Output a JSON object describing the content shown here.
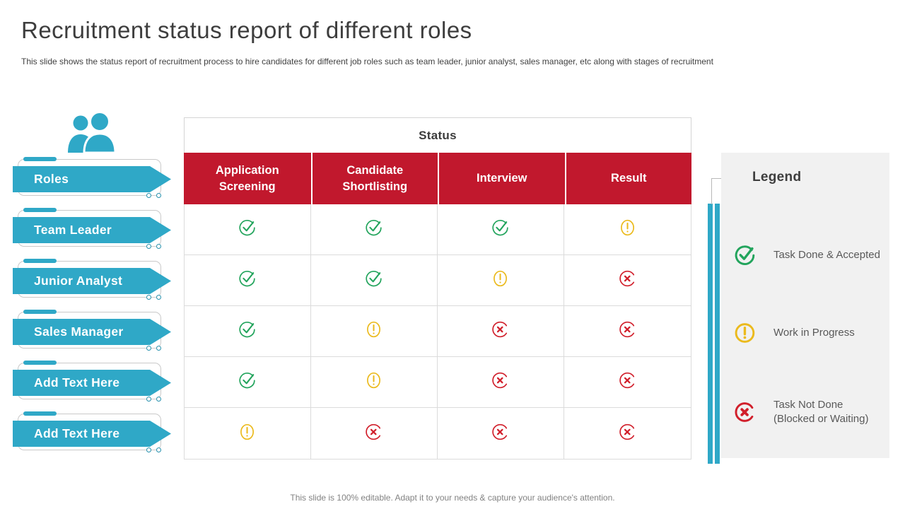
{
  "slide": {
    "title": "Recruitment status report of different roles",
    "subtitle": "This slide shows the status report of recruitment process to hire candidates for different job roles such as team leader, junior analyst, sales manager, etc along with stages of recruitment",
    "footer": "This slide is 100% editable. Adapt it to your needs & capture your audience's attention."
  },
  "colors": {
    "teal": "#2FA8C7",
    "header_red": "#C1182D",
    "icon_green": "#22A45C",
    "icon_yellow": "#EBBA1D",
    "icon_red": "#D11F2B",
    "legend_bg": "#F1F1F1"
  },
  "roles_column": {
    "header_icon": "people-icon",
    "items": [
      {
        "label": "Roles",
        "placeholder": false
      },
      {
        "label": "Team Leader",
        "placeholder": false
      },
      {
        "label": "Junior Analyst",
        "placeholder": false
      },
      {
        "label": "Sales Manager",
        "placeholder": false
      },
      {
        "label": "Add Text Here",
        "placeholder": true
      },
      {
        "label": "Add Text Here",
        "placeholder": true
      }
    ]
  },
  "table": {
    "group_header": "Status",
    "columns": [
      "Application Screening",
      "Candidate Shortlisting",
      "Interview",
      "Result"
    ],
    "status_icons": {
      "done": "check-circle-icon",
      "progress": "exclamation-circle-icon",
      "notdone": "cross-circle-icon"
    },
    "rows": [
      {
        "role": "Team Leader",
        "statuses": [
          "done",
          "done",
          "done",
          "progress"
        ]
      },
      {
        "role": "Junior Analyst",
        "statuses": [
          "done",
          "done",
          "progress",
          "notdone"
        ]
      },
      {
        "role": "Sales Manager",
        "statuses": [
          "done",
          "progress",
          "notdone",
          "notdone"
        ]
      },
      {
        "role": "Add Text Here",
        "statuses": [
          "done",
          "progress",
          "notdone",
          "notdone"
        ]
      },
      {
        "role": "Add Text Here",
        "statuses": [
          "progress",
          "notdone",
          "notdone",
          "notdone"
        ]
      }
    ]
  },
  "legend": {
    "title": "Legend",
    "items": [
      {
        "icon": "done",
        "icon_name": "check-circle-icon",
        "label": "Task Done & Accepted"
      },
      {
        "icon": "progress",
        "icon_name": "exclamation-circle-icon",
        "label": "Work in Progress"
      },
      {
        "icon": "notdone",
        "icon_name": "cross-circle-icon",
        "label": "Task Not Done (Blocked or Waiting)"
      }
    ]
  }
}
